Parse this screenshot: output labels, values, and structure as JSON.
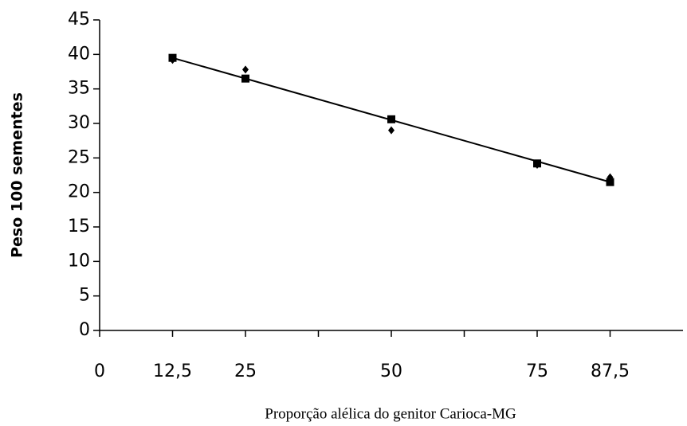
{
  "chart_data": {
    "type": "scatter",
    "xlabel": "Proporção alélica do genitor Carioca-MG",
    "ylabel": "Peso 100 sementes",
    "xlim": [
      0,
      100
    ],
    "ylim": [
      0,
      45
    ],
    "xticks": [
      0,
      {
        "value": 12.5,
        "label": "12,5"
      },
      25,
      50,
      75,
      {
        "value": 87.5,
        "label": "87,5"
      }
    ],
    "xminor_ticks": [
      37.5,
      62.5
    ],
    "yticks": [
      0,
      5,
      10,
      15,
      20,
      25,
      30,
      35,
      40,
      45
    ],
    "series": [
      {
        "marker": "square",
        "color": "#000000",
        "x": [
          12.5,
          25,
          50,
          75,
          87.5
        ],
        "values": [
          39.5,
          36.5,
          30.6,
          24.2,
          21.5
        ]
      },
      {
        "marker": "diamond",
        "color": "#000000",
        "x": [
          12.5,
          25,
          50,
          75,
          87.5
        ],
        "values": [
          39.2,
          37.8,
          29.0,
          24.0,
          22.2
        ]
      }
    ],
    "trendline": {
      "color": "#000000",
      "x": [
        12.5,
        87.5
      ],
      "values": [
        39.5,
        21.5
      ]
    }
  }
}
